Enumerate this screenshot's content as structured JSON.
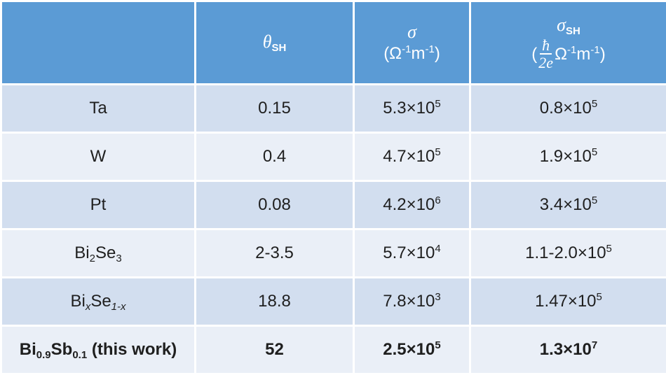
{
  "header": {
    "col1": "",
    "theta": {
      "symbol": "θ",
      "sub": "SH"
    },
    "sigma": {
      "symbol": "σ",
      "unit_open": "(Ω",
      "unit_exp1": "-1",
      "unit_m": "m",
      "unit_exp2": "-1",
      "unit_close": ")"
    },
    "sigma_sh": {
      "symbol": "σ",
      "sub": "SH",
      "open": "(",
      "frac_num": "ħ",
      "frac_den": "2e",
      "unit_omega": "Ω",
      "unit_exp1": "-1",
      "unit_m": "m",
      "unit_exp2": "-1",
      "close": ")"
    }
  },
  "rows": [
    {
      "material": "Ta",
      "theta": "0.15",
      "sigma_base": "5.3×10",
      "sigma_exp": "5",
      "sigma_sh_base": "0.8×10",
      "sigma_sh_exp": "5"
    },
    {
      "material": "W",
      "theta": "0.4",
      "sigma_base": "4.7×10",
      "sigma_exp": "5",
      "sigma_sh_base": "1.9×10",
      "sigma_sh_exp": "5"
    },
    {
      "material": "Pt",
      "theta": "0.08",
      "sigma_base": "4.2×10",
      "sigma_exp": "6",
      "sigma_sh_base": "3.4×10",
      "sigma_sh_exp": "5"
    },
    {
      "material_parts": [
        "Bi",
        "2",
        "Se",
        "3"
      ],
      "theta": "2-3.5",
      "sigma_base": "5.7×10",
      "sigma_exp": "4",
      "sigma_sh_base": "1.1-2.0×10",
      "sigma_sh_exp": "5"
    },
    {
      "material_parts": [
        "Bi",
        "x",
        "Se",
        "1-x"
      ],
      "theta": "18.8",
      "sigma_base": "7.8×10",
      "sigma_exp": "3",
      "sigma_sh_base": "1.47×10",
      "sigma_sh_exp": "5"
    },
    {
      "material_parts": [
        "Bi",
        "0.9",
        "Sb",
        "0.1",
        " (this work)"
      ],
      "theta": "52",
      "sigma_base": "2.5×10",
      "sigma_exp": "5",
      "sigma_sh_base": "1.3×10",
      "sigma_sh_exp": "7"
    }
  ]
}
